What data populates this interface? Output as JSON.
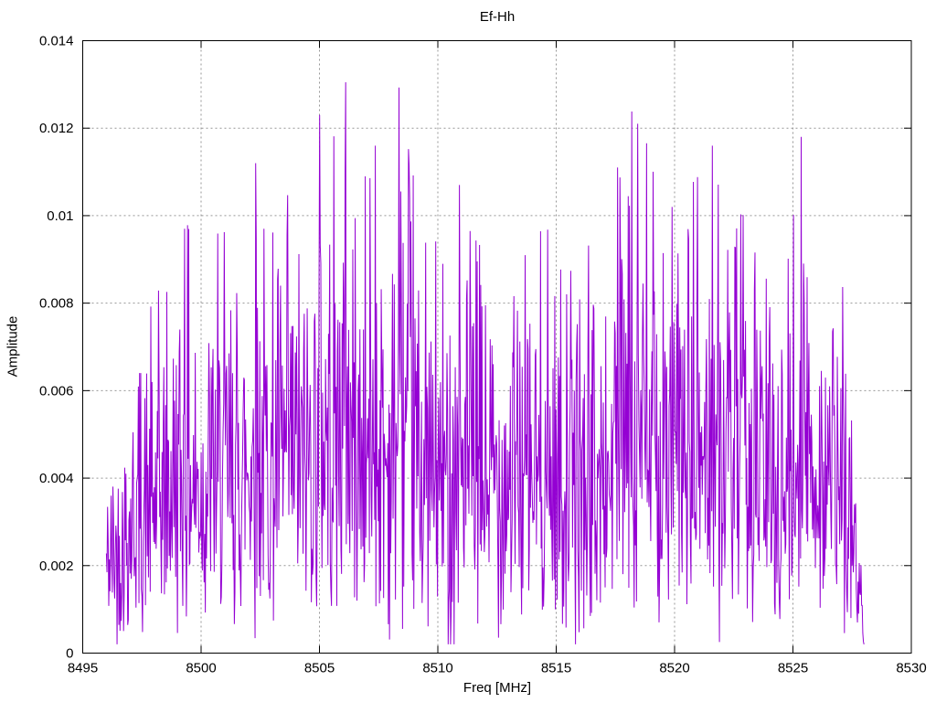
{
  "chart_data": {
    "type": "line",
    "title": "Ef-Hh",
    "xlabel": "Freq [MHz]",
    "ylabel": "Amplitude",
    "xlim": [
      8495,
      8530
    ],
    "ylim": [
      0,
      0.014
    ],
    "xticks": [
      8495,
      8500,
      8505,
      8510,
      8515,
      8520,
      8525,
      8530
    ],
    "xtick_labels": [
      "8495",
      "8500",
      "8505",
      "8510",
      "8515",
      "8520",
      "8525",
      "8530"
    ],
    "yticks": [
      0,
      0.002,
      0.004,
      0.006,
      0.008,
      0.01,
      0.012,
      0.014
    ],
    "ytick_labels": [
      "0",
      "0.002",
      "0.004",
      "0.006",
      "0.008",
      "0.01",
      "0.012",
      "0.014"
    ],
    "grid": {
      "visible": true,
      "style": "dotted",
      "color": "#969696"
    },
    "legend": {
      "visible": false
    },
    "line_color": "#9400d3",
    "axis_color": "#000000",
    "background_color": "#ffffff",
    "series": [
      {
        "name": "Ef-Hh",
        "description": "Dense noisy spectrum magnitude trace (values unreadable point-by-point); reconstructed from estimated max-amplitude envelope, Rayleigh-like noise and the major visible peaks.",
        "x_start": 8496.0,
        "x_end": 8528.0,
        "n_points": 1280,
        "seed": 42,
        "noise_sigma": 0.35,
        "noise_max": 1.0,
        "y_floor": 0.0002,
        "envelope": [
          [
            8496.0,
            0.0048
          ],
          [
            8496.6,
            0.0058
          ],
          [
            8497.2,
            0.0075
          ],
          [
            8498.0,
            0.008
          ],
          [
            8498.7,
            0.009
          ],
          [
            8499.3,
            0.01
          ],
          [
            8500.0,
            0.0088
          ],
          [
            8500.8,
            0.0097
          ],
          [
            8501.5,
            0.0094
          ],
          [
            8502.3,
            0.0113
          ],
          [
            8503.0,
            0.01
          ],
          [
            8503.7,
            0.0105
          ],
          [
            8504.3,
            0.0101
          ],
          [
            8505.0,
            0.0122
          ],
          [
            8505.6,
            0.0118
          ],
          [
            8506.1,
            0.0128
          ],
          [
            8506.7,
            0.0106
          ],
          [
            8507.4,
            0.0115
          ],
          [
            8508.0,
            0.0102
          ],
          [
            8508.4,
            0.0126
          ],
          [
            8509.0,
            0.0108
          ],
          [
            8509.7,
            0.0095
          ],
          [
            8510.4,
            0.0092
          ],
          [
            8511.0,
            0.0106
          ],
          [
            8511.7,
            0.0093
          ],
          [
            8512.5,
            0.0097
          ],
          [
            8513.3,
            0.0094
          ],
          [
            8514.0,
            0.0096
          ],
          [
            8514.8,
            0.0097
          ],
          [
            8515.5,
            0.0091
          ],
          [
            8516.2,
            0.0094
          ],
          [
            8517.0,
            0.009
          ],
          [
            8517.6,
            0.011
          ],
          [
            8518.2,
            0.0122
          ],
          [
            8518.8,
            0.0118
          ],
          [
            8519.5,
            0.0099
          ],
          [
            8520.2,
            0.0104
          ],
          [
            8521.0,
            0.0109
          ],
          [
            8521.6,
            0.0115
          ],
          [
            8522.3,
            0.0101
          ],
          [
            8523.0,
            0.01
          ],
          [
            8523.8,
            0.0098
          ],
          [
            8524.5,
            0.0083
          ],
          [
            8525.3,
            0.0116
          ],
          [
            8526.0,
            0.0102
          ],
          [
            8526.7,
            0.0091
          ],
          [
            8527.3,
            0.008
          ],
          [
            8527.7,
            0.0046
          ],
          [
            8528.0,
            0.001
          ]
        ],
        "peaks": [
          [
            8499.3,
            0.0097
          ],
          [
            8502.3,
            0.0112
          ],
          [
            8505.0,
            0.0123
          ],
          [
            8506.1,
            0.01305
          ],
          [
            8507.35,
            0.0116
          ],
          [
            8508.35,
            0.01293
          ],
          [
            8510.9,
            0.0107
          ],
          [
            8517.6,
            0.0111
          ],
          [
            8518.2,
            0.01238
          ],
          [
            8518.45,
            0.0121
          ],
          [
            8519.9,
            0.0102
          ],
          [
            8521.6,
            0.0116
          ],
          [
            8525.35,
            0.0118
          ]
        ]
      }
    ]
  }
}
